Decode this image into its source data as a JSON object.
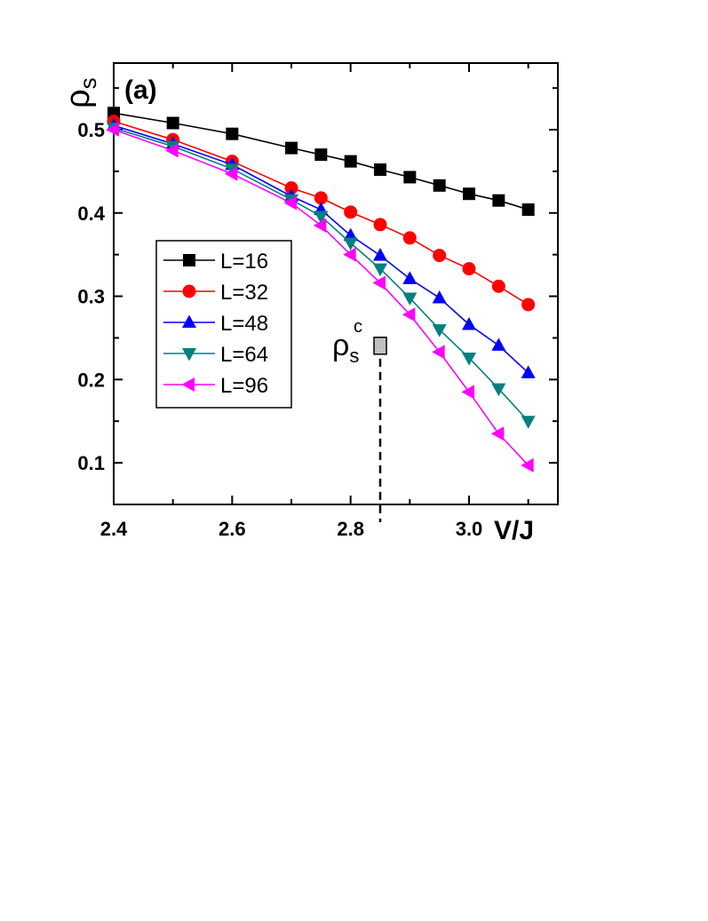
{
  "chart_data": {
    "type": "line",
    "panel_label": "(a)",
    "title": "",
    "xlabel": "V/J",
    "ylabel": "ρ",
    "ylabel_sub": "s",
    "xlim": [
      2.4,
      3.15
    ],
    "ylim": [
      0.05,
      0.58
    ],
    "x_ticks": [
      2.4,
      2.6,
      2.8,
      3.0
    ],
    "x_tick_labels": [
      "2.4",
      "2.6",
      "2.8",
      "3.0"
    ],
    "y_ticks": [
      0.1,
      0.2,
      0.3,
      0.4,
      0.5
    ],
    "y_tick_labels": [
      "0.1",
      "0.2",
      "0.3",
      "0.4",
      "0.5"
    ],
    "grid": false,
    "legend_position": "left-middle",
    "x": [
      2.4,
      2.5,
      2.6,
      2.7,
      2.75,
      2.8,
      2.85,
      2.9,
      2.95,
      3.0,
      3.05,
      3.1
    ],
    "series": [
      {
        "name": "L=16",
        "color": "#000000",
        "marker": "square",
        "values": [
          0.52,
          0.508,
          0.495,
          0.478,
          0.47,
          0.462,
          0.452,
          0.443,
          0.433,
          0.423,
          0.415,
          0.404
        ]
      },
      {
        "name": "L=32",
        "color": "#ff0000",
        "marker": "circle",
        "values": [
          0.51,
          0.488,
          0.462,
          0.43,
          0.418,
          0.401,
          0.386,
          0.37,
          0.349,
          0.333,
          0.312,
          0.29
        ]
      },
      {
        "name": "L=48",
        "color": "#0000ff",
        "marker": "triangle-up",
        "values": [
          0.505,
          0.483,
          0.458,
          0.42,
          0.404,
          0.373,
          0.349,
          0.321,
          0.298,
          0.266,
          0.241,
          0.208
        ]
      },
      {
        "name": "L=64",
        "color": "#008080",
        "marker": "triangle-down",
        "values": [
          0.502,
          0.48,
          0.453,
          0.416,
          0.396,
          0.364,
          0.333,
          0.298,
          0.26,
          0.226,
          0.189,
          0.15
        ]
      },
      {
        "name": "L=96",
        "color": "#ff00ff",
        "marker": "triangle-left",
        "values": [
          0.5,
          0.475,
          0.447,
          0.412,
          0.385,
          0.35,
          0.316,
          0.278,
          0.233,
          0.185,
          0.135,
          0.097
        ]
      }
    ],
    "annotation": {
      "label": "ρ",
      "label_sub": "s",
      "label_sup": "c",
      "x": 2.85,
      "y": 0.24,
      "marker_color": "#c0c0c0"
    }
  }
}
